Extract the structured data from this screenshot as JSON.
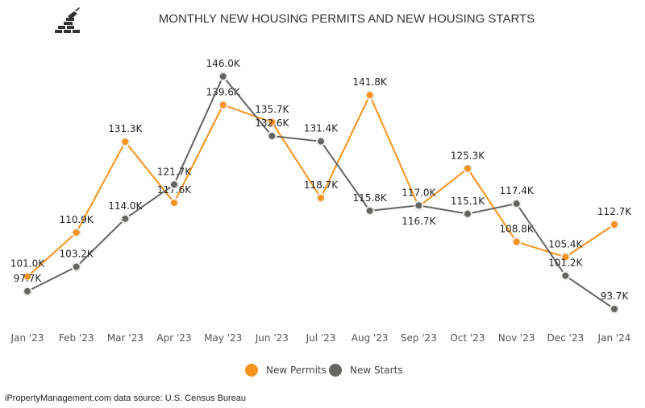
{
  "chart_data": {
    "type": "line",
    "title": "MONTHLY NEW HOUSING PERMITS AND NEW HOUSING STARTS",
    "categories": [
      "Jan '23",
      "Feb '23",
      "Mar '23",
      "Apr '23",
      "May '23",
      "Jun '23",
      "Jul '23",
      "Aug '23",
      "Sep '23",
      "Oct '23",
      "Nov '23",
      "Dec '23",
      "Jan '24"
    ],
    "series": [
      {
        "name": "New Permits",
        "color": "#f7931e",
        "values": [
          101.0,
          110.9,
          131.3,
          117.6,
          139.6,
          135.7,
          118.7,
          141.8,
          116.7,
          125.3,
          108.8,
          105.4,
          112.7
        ],
        "labels": [
          "101.0K",
          "110.9K",
          "131.3K",
          "117.6K",
          "139.6K",
          "135.7K",
          "118.7K",
          "141.8K",
          "116.7K",
          "125.3K",
          "108.8K",
          "105.4K",
          "112.7K"
        ]
      },
      {
        "name": "New Starts",
        "color": "#666461",
        "values": [
          97.7,
          103.2,
          114.0,
          121.7,
          146.0,
          132.6,
          131.4,
          115.8,
          117.0,
          115.1,
          117.4,
          101.2,
          93.7
        ],
        "labels": [
          "97.7K",
          "103.2K",
          "114.0K",
          "121.7K",
          "146.0K",
          "132.6K",
          "131.4K",
          "115.8K",
          "117.0K",
          "115.1K",
          "117.4K",
          "101.2K",
          "93.7K"
        ]
      }
    ],
    "xlabel": "",
    "ylabel": "",
    "grid": false,
    "legend": "bottom"
  },
  "logo": {
    "icon": "brick-wall-trowel-icon"
  },
  "footer": {
    "source": "iPropertyManagement.com data source: U.S. Census Bureau"
  }
}
